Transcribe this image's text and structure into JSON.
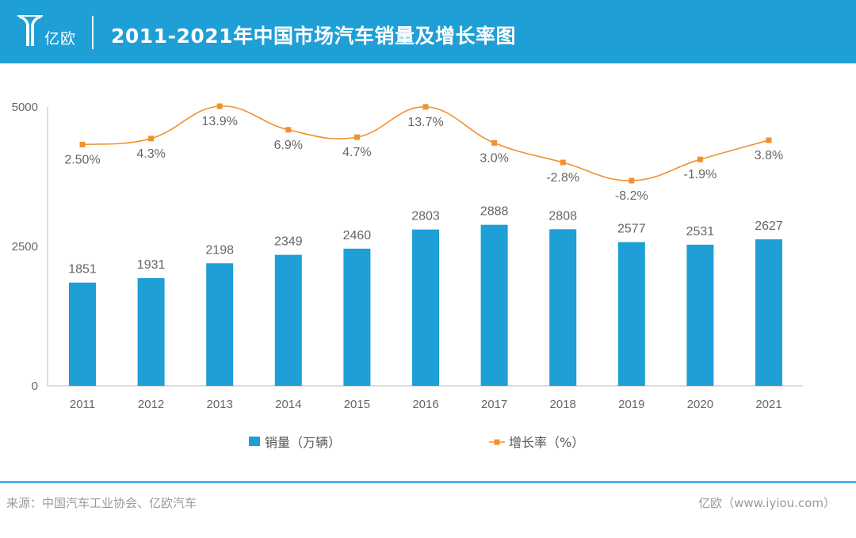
{
  "header": {
    "brand": "亿欧",
    "title": "2011-2021年中国市场汽车销量及增长率图",
    "background_color": "#1e9fd6"
  },
  "footer": {
    "source": "来源：中国汽车工业协会、亿欧汽车",
    "site": "亿欧（www.iyiou.com）"
  },
  "chart_data": {
    "type": "bar",
    "title": "2011-2021年中国市场汽车销量及增长率图",
    "xlabel": "",
    "ylabel": "",
    "categories": [
      "2011",
      "2012",
      "2013",
      "2014",
      "2015",
      "2016",
      "2017",
      "2018",
      "2019",
      "2020",
      "2021"
    ],
    "ylim": [
      0,
      5000
    ],
    "yticks": [
      0,
      2500,
      5000
    ],
    "grid": false,
    "legend_position": "bottom",
    "series": [
      {
        "name": "销量（万辆）",
        "type": "bar",
        "color": "#1e9fd6",
        "values": [
          1851,
          1931,
          2198,
          2349,
          2460,
          2803,
          2888,
          2808,
          2577,
          2531,
          2627
        ],
        "labels": [
          "1851",
          "1931",
          "2198",
          "2349",
          "2460",
          "2803",
          "2888",
          "2808",
          "2577",
          "2531",
          "2627"
        ]
      },
      {
        "name": "增长率（%）",
        "type": "line",
        "smooth": true,
        "color": "#f0912e",
        "values": [
          2.5,
          4.3,
          13.9,
          6.9,
          4.7,
          13.7,
          3.0,
          -2.8,
          -8.2,
          -1.9,
          3.8
        ],
        "labels": [
          "2.50%",
          "4.3%",
          "13.9%",
          "6.9%",
          "4.7%",
          "13.7%",
          "3.0%",
          "-2.8%",
          "-8.2%",
          "-1.9%",
          "3.8%"
        ]
      }
    ]
  }
}
